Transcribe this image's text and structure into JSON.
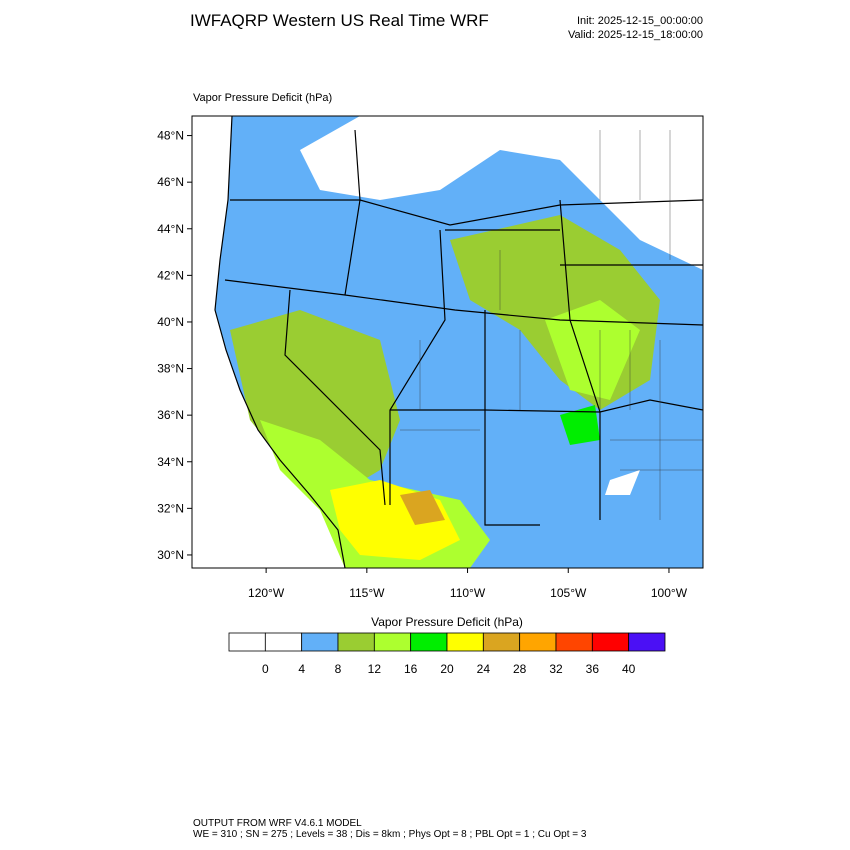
{
  "header": {
    "title": "IWFAQRP Western US Real Time WRF",
    "init": "Init: 2025-12-15_00:00:00",
    "valid": "Valid: 2025-12-15_18:00:00"
  },
  "map": {
    "title": "Vapor Pressure Deficit   (hPa)",
    "xlim": [
      -123.68,
      -98.31
    ],
    "ylim": [
      29.44,
      48.84
    ],
    "xticks": [
      {
        "value": -120,
        "label": "120°W"
      },
      {
        "value": -115,
        "label": "115°W"
      },
      {
        "value": -110,
        "label": "110°W"
      },
      {
        "value": -105,
        "label": "105°W"
      },
      {
        "value": -100,
        "label": "100°W"
      }
    ],
    "yticks": [
      {
        "value": 30,
        "label": "30°N"
      },
      {
        "value": 32,
        "label": "32°N"
      },
      {
        "value": 34,
        "label": "34°N"
      },
      {
        "value": 36,
        "label": "36°N"
      },
      {
        "value": 38,
        "label": "38°N"
      },
      {
        "value": 40,
        "label": "40°N"
      },
      {
        "value": 42,
        "label": "42°N"
      },
      {
        "value": 44,
        "label": "44°N"
      },
      {
        "value": 46,
        "label": "46°N"
      },
      {
        "value": 48,
        "label": "48°N"
      }
    ]
  },
  "colorbar": {
    "title": "Vapor Pressure Deficit  (hPa)",
    "levels": [
      0,
      4,
      8,
      12,
      16,
      20,
      24,
      28,
      32,
      36,
      40
    ],
    "colors": [
      "#ffffff",
      "#ffffff",
      "#62b0f8",
      "#9acd32",
      "#adff2f",
      "#00ee00",
      "#ffff00",
      "#daa520",
      "#ffa500",
      "#ff4500",
      "#ff0000",
      "#4b10f5"
    ]
  },
  "footer": {
    "line1": "OUTPUT FROM WRF V4.6.1 MODEL",
    "line2": "WE = 310 ; SN = 275 ; Levels = 38 ; Dis = 8km ; Phys Opt = 8 ; PBL Opt = 1 ; Cu Opt = 3"
  }
}
